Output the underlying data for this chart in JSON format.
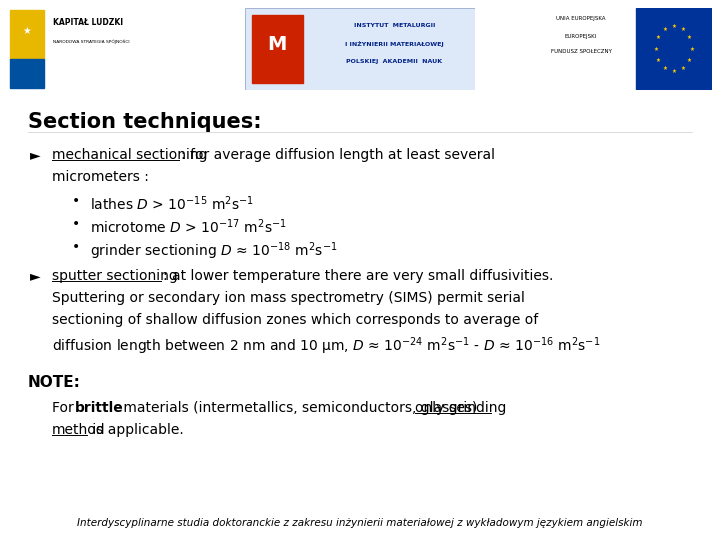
{
  "bg_color": "#ffffff",
  "title": "Section techniques:",
  "title_fontsize": 15,
  "footer": "Interdyscyplinarne studia doktoranckie z zakresu inżynierii materiałowej z wykładowym językiem angielskim",
  "footer_fontsize": 7.5,
  "bullet1_underline": "mechanical sectioning",
  "bullet1_rest": ": for average diffusion length at least several",
  "bullet1_cont": "micrometers :",
  "subbullets": [
    "lathes $D$ > 10$^{-15}$ m$^{2}$s$^{-1}$",
    "microtome $D$ > 10$^{-17}$ m$^{2}$s$^{-1}$",
    "grinder sectioning $D$ ≈ 10$^{-18}$ m$^{2}$s$^{-1}$"
  ],
  "bullet2_underline": "sputter sectioning",
  "bullet2_line1": ": at lower temperature there are very small diffusivities.",
  "bullet2_line2": "Sputtering or secondary ion mass spectrometry (SIMS) permit serial",
  "bullet2_line3": "sectioning of shallow diffusion zones which corresponds to average of",
  "bullet2_line4": "diffusion length between 2 nm and 10 μm, $D$ ≈ 10$^{-24}$ m$^{2}$s$^{-1}$ - $D$ ≈ 10$^{-16}$ m$^{2}$s$^{-1}$",
  "note_title": "NOTE:",
  "note_line1_pre": "For ",
  "note_line1_bold": "brittle",
  "note_line1_mid": " materials (intermetallics, semiconductors, glasses) ",
  "note_line1_ul": "only grinding",
  "note_line2_ul": "method",
  "note_line2_rest": " is applicable.",
  "logo1_title": "KAPITAŁ LUDZKI",
  "logo1_sub": "NARODOWA STRATEGIA SPÓJNOŚCI",
  "logo2_line1": "INSTYTUT  METALURGII",
  "logo2_line2": "I INŻYNIERII MATERIAŁOWEJ",
  "logo2_line3": "POLSKIEJ  AKADEMII  NAUK",
  "logo3_line1": "UNIA EUROPEJSKA",
  "logo3_line2": "EUROPEJSKI",
  "logo3_line3": "FUNDUSZ SPOŁECZNY"
}
